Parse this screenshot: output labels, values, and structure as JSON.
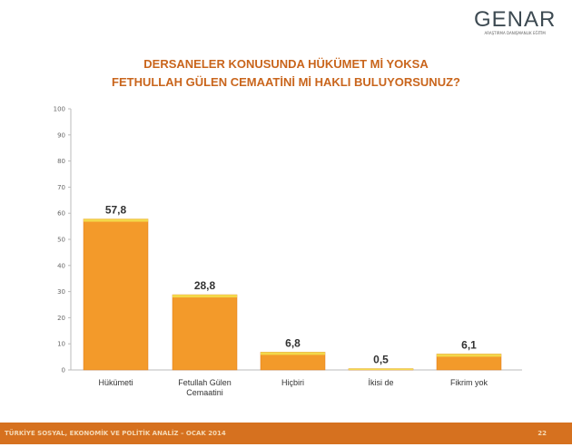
{
  "logo": {
    "name": "GENAR",
    "tagline": "ARAŞTIRMA DANIŞMANLIK EĞİTİM"
  },
  "footer": {
    "text": "TÜRKİYE SOSYAL, EKONOMİK VE POLİTİK ANALİZ – OCAK 2014",
    "page": "22"
  },
  "chart_data": {
    "type": "bar",
    "title": [
      "DERSANELER KONUSUNDA HÜKÜMET Mİ YOKSA",
      "FETHULLAH GÜLEN CEMAATİNİ Mİ HAKLI BULUYORSUNUZ?"
    ],
    "categories": [
      [
        "Hükümeti"
      ],
      [
        "Fetullah Gülen",
        "Cemaatini"
      ],
      [
        "Hiçbiri"
      ],
      [
        "İkisi de"
      ],
      [
        "Fikrim yok"
      ]
    ],
    "values": [
      57.8,
      28.8,
      6.8,
      0.5,
      6.1
    ],
    "value_labels": [
      "57,8",
      "28,8",
      "6,8",
      "0,5",
      "6,1"
    ],
    "ylim": [
      0,
      100
    ],
    "yticks": [
      0,
      10,
      20,
      30,
      40,
      50,
      60,
      70,
      80,
      90,
      100
    ],
    "grid": false,
    "colors": {
      "bar": "#f39a2a",
      "bar_top": "#f3d84a",
      "bar_edge": "#e07a1a"
    }
  }
}
